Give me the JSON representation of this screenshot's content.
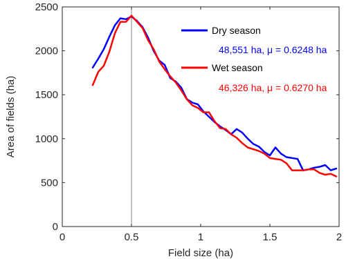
{
  "chart_data": {
    "type": "line",
    "xlabel": "Field size (ha)",
    "ylabel": "Area of fields (ha)",
    "xlim": [
      0,
      2
    ],
    "ylim": [
      0,
      2500
    ],
    "xticks": [
      0,
      0.5,
      1,
      1.5,
      2
    ],
    "xtick_labels": [
      "0",
      "0.5",
      "1",
      "1.5",
      "2"
    ],
    "yticks": [
      0,
      500,
      1000,
      1500,
      2000,
      2500
    ],
    "ytick_labels": [
      "0",
      "500",
      "1000",
      "1500",
      "2000",
      "2500"
    ],
    "grid": false,
    "legend_position": "top-right",
    "reference_line_x": 0.5,
    "series": [
      {
        "name": "Dry season",
        "stat": "48,551 ha, μ = 0.6248 ha",
        "color": "#0000ff",
        "x": [
          0.22,
          0.26,
          0.3,
          0.34,
          0.38,
          0.42,
          0.46,
          0.5,
          0.54,
          0.58,
          0.62,
          0.66,
          0.7,
          0.74,
          0.78,
          0.82,
          0.86,
          0.9,
          0.94,
          0.98,
          1.02,
          1.06,
          1.1,
          1.14,
          1.18,
          1.22,
          1.26,
          1.3,
          1.34,
          1.38,
          1.42,
          1.46,
          1.5,
          1.54,
          1.58,
          1.62,
          1.66,
          1.7,
          1.74,
          1.78,
          1.82,
          1.86,
          1.9,
          1.94,
          1.98
        ],
        "y": [
          1810,
          1910,
          2020,
          2160,
          2290,
          2370,
          2360,
          2390,
          2340,
          2270,
          2150,
          2000,
          1890,
          1840,
          1690,
          1650,
          1580,
          1450,
          1410,
          1390,
          1310,
          1250,
          1190,
          1140,
          1100,
          1050,
          1110,
          1070,
          1000,
          940,
          910,
          850,
          810,
          900,
          830,
          790,
          780,
          770,
          640,
          650,
          670,
          680,
          700,
          640,
          660
        ]
      },
      {
        "name": "Wet season",
        "stat": "46,326 ha, μ = 0.6270 ha",
        "color": "#ff0000",
        "x": [
          0.22,
          0.26,
          0.3,
          0.34,
          0.38,
          0.42,
          0.46,
          0.5,
          0.54,
          0.58,
          0.62,
          0.66,
          0.7,
          0.74,
          0.78,
          0.82,
          0.86,
          0.9,
          0.94,
          0.98,
          1.02,
          1.06,
          1.1,
          1.14,
          1.18,
          1.22,
          1.26,
          1.3,
          1.34,
          1.38,
          1.42,
          1.46,
          1.5,
          1.54,
          1.58,
          1.62,
          1.66,
          1.7,
          1.74,
          1.78,
          1.82,
          1.86,
          1.9,
          1.94,
          1.98
        ],
        "y": [
          1610,
          1760,
          1830,
          1990,
          2200,
          2330,
          2330,
          2400,
          2330,
          2260,
          2120,
          2020,
          1880,
          1790,
          1710,
          1640,
          1550,
          1450,
          1380,
          1350,
          1300,
          1300,
          1200,
          1120,
          1110,
          1050,
          1010,
          950,
          900,
          880,
          860,
          830,
          780,
          770,
          760,
          720,
          640,
          640,
          640,
          650,
          650,
          610,
          590,
          600,
          570
        ]
      }
    ]
  }
}
